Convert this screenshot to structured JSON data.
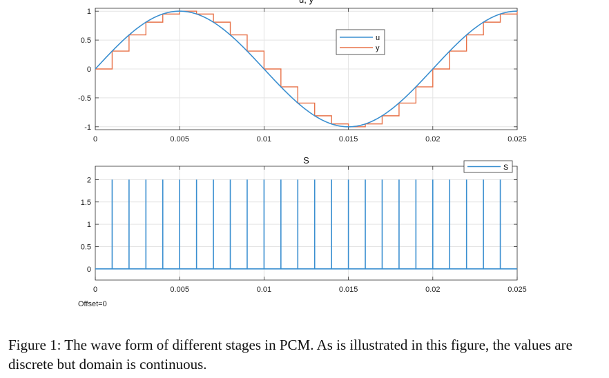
{
  "chart_data": [
    {
      "type": "line",
      "title": "u, y",
      "xlim": [
        0,
        0.025
      ],
      "ylim": [
        -1.05,
        1.05
      ],
      "xticks": [
        0,
        0.005,
        0.01,
        0.015,
        0.02,
        0.025
      ],
      "xtick_labels": [
        "0",
        "0.005",
        "0.01",
        "0.015",
        "0.02",
        "0.025"
      ],
      "yticks": [
        1,
        0.5,
        0,
        -0.5,
        -1
      ],
      "ytick_labels": [
        "1",
        "0.5",
        "0",
        "-0.5",
        "-1"
      ],
      "grid": true,
      "legend": "upper right",
      "series": [
        {
          "name": "u",
          "color": "#3a8fd0",
          "function": "sin(2*pi*50*t)",
          "x": [
            0,
            0.00125,
            0.0025,
            0.00375,
            0.005,
            0.00625,
            0.0075,
            0.00875,
            0.01,
            0.01125,
            0.0125,
            0.01375,
            0.015,
            0.01625,
            0.0175,
            0.01875,
            0.02,
            0.02125,
            0.0225,
            0.02375,
            0.025
          ],
          "y": [
            0,
            0.38,
            0.71,
            0.92,
            1,
            0.92,
            0.71,
            0.38,
            0,
            -0.38,
            -0.71,
            -0.92,
            -1,
            -0.92,
            -0.71,
            -0.38,
            0,
            0.38,
            0.71,
            0.92,
            1
          ]
        },
        {
          "name": "y",
          "color": "#e8734a",
          "type": "step",
          "x": [
            0,
            0.001,
            0.002,
            0.003,
            0.004,
            0.005,
            0.006,
            0.007,
            0.008,
            0.009,
            0.01,
            0.011,
            0.012,
            0.013,
            0.014,
            0.015,
            0.016,
            0.017,
            0.018,
            0.019,
            0.02,
            0.021,
            0.022,
            0.023,
            0.024,
            0.025
          ],
          "y": [
            0,
            0.31,
            0.59,
            0.81,
            0.95,
            1,
            0.95,
            0.81,
            0.59,
            0.31,
            0,
            -0.31,
            -0.59,
            -0.81,
            -0.95,
            -1,
            -0.95,
            -0.81,
            -0.59,
            -0.31,
            0,
            0.31,
            0.59,
            0.81,
            0.95,
            1
          ]
        }
      ]
    },
    {
      "type": "line",
      "title": "S",
      "xlim": [
        0,
        0.025
      ],
      "ylim": [
        -0.25,
        2.3
      ],
      "xticks": [
        0,
        0.005,
        0.01,
        0.015,
        0.02,
        0.025
      ],
      "xtick_labels": [
        "0",
        "0.005",
        "0.01",
        "0.015",
        "0.02",
        "0.025"
      ],
      "yticks": [
        2,
        1.5,
        1,
        0.5,
        0
      ],
      "ytick_labels": [
        "2",
        "1.5",
        "1",
        "0.5",
        "0"
      ],
      "grid": true,
      "legend": "upper right",
      "footer_label": "Offset=0",
      "series": [
        {
          "name": "S",
          "color": "#3a8fd0",
          "baseline": 0,
          "pulse_height": 2,
          "pulse_x": [
            0.001,
            0.002,
            0.003,
            0.004,
            0.005,
            0.006,
            0.007,
            0.008,
            0.009,
            0.01,
            0.011,
            0.012,
            0.013,
            0.014,
            0.015,
            0.016,
            0.017,
            0.018,
            0.019,
            0.02,
            0.021,
            0.022,
            0.023,
            0.024
          ]
        }
      ]
    }
  ],
  "caption": "Figure 1: The wave form of different stages in PCM. As is illustrated in this figure, the values are discrete but domain is continuous."
}
